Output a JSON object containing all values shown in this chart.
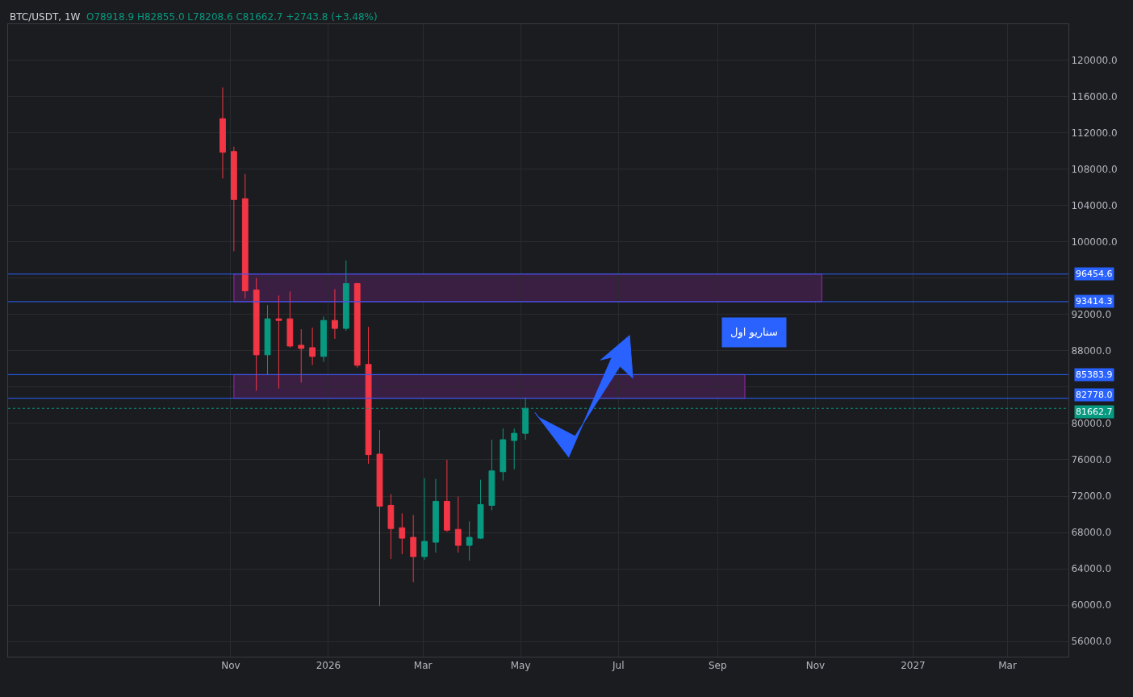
{
  "chart_data": {
    "type": "candlestick",
    "title": "BTC/USDT, 1W",
    "subtitle": "O78918.9 H82855.0 L78208.6 C81662.7 +2743.8 (+3.48%)",
    "x": [
      "2025-10-27",
      "2025-11-03",
      "2025-11-10",
      "2025-11-17",
      "2025-11-24",
      "2025-12-01",
      "2025-12-08",
      "2025-12-15",
      "2025-12-22",
      "2025-12-29",
      "2026-01-05",
      "2026-01-12",
      "2026-01-19",
      "2026-01-26",
      "2026-02-02",
      "2026-02-09",
      "2026-02-16",
      "2026-02-23",
      "2026-03-02",
      "2026-03-09",
      "2026-03-16",
      "2026-03-23",
      "2026-03-30",
      "2026-04-06",
      "2026-04-13",
      "2026-04-20",
      "2026-04-27",
      "2026-05-04"
    ],
    "ohlc": [
      [
        113565,
        117003,
        106979,
        109862
      ],
      [
        109950,
        110479,
        98958,
        104661
      ],
      [
        104749,
        107482,
        93757,
        94612
      ],
      [
        94700,
        96022,
        83621,
        87559
      ],
      [
        87559,
        93024,
        85328,
        91526
      ],
      [
        91526,
        94083,
        83857,
        91350
      ],
      [
        91526,
        94524,
        88353,
        88529
      ],
      [
        88617,
        90380,
        84502,
        88265
      ],
      [
        88353,
        90556,
        86440,
        87383
      ],
      [
        87383,
        91791,
        86793,
        91350
      ],
      [
        91350,
        94788,
        89322,
        90468
      ],
      [
        90468,
        97961,
        90204,
        95405
      ],
      [
        95405,
        95493,
        86149,
        86413
      ],
      [
        86501,
        90644,
        75570,
        76567
      ],
      [
        76629,
        79273,
        59906,
        70899
      ],
      [
        70987,
        72221,
        65081,
        68431
      ],
      [
        68519,
        70105,
        65610,
        67373
      ],
      [
        67461,
        69929,
        62524,
        65345
      ],
      [
        65345,
        73983,
        64992,
        67020
      ],
      [
        66932,
        73895,
        65786,
        71428
      ],
      [
        71428,
        76011,
        68079,
        68255
      ],
      [
        68343,
        71956,
        65786,
        66580
      ],
      [
        66580,
        69224,
        64904,
        67461
      ],
      [
        67373,
        73807,
        67285,
        71075
      ],
      [
        70987,
        78215,
        70458,
        74778
      ],
      [
        74690,
        79449,
        73719,
        78215
      ],
      [
        78127,
        79449,
        74954,
        78920
      ],
      [
        78918.9,
        82855.0,
        78208.6,
        81662.7
      ]
    ],
    "colors": [
      "#f23645",
      "#f23645",
      "#f23645",
      "#f23645",
      "#089981",
      "#f23645",
      "#f23645",
      "#f23645",
      "#f23645",
      "#089981",
      "#f23645",
      "#089981",
      "#f23645",
      "#f23645",
      "#f23645",
      "#f23645",
      "#f23645",
      "#f23645",
      "#089981",
      "#089981",
      "#f23645",
      "#f23645",
      "#089981",
      "#089981",
      "#089981",
      "#089981",
      "#089981",
      "#089981"
    ],
    "xlim": [
      "2025-06-15",
      "2027-04-08"
    ],
    "xticks": [
      {
        "value": "2025-11-01",
        "label": "Nov"
      },
      {
        "value": "2026-01-01",
        "label": "2026"
      },
      {
        "value": "2026-03-01",
        "label": "Mar"
      },
      {
        "value": "2026-05-01",
        "label": "May"
      },
      {
        "value": "2026-07-01",
        "label": "Jul"
      },
      {
        "value": "2026-09-01",
        "label": "Sep"
      },
      {
        "value": "2026-11-01",
        "label": "Nov"
      },
      {
        "value": "2027-01-01",
        "label": "2027"
      },
      {
        "value": "2027-03-01",
        "label": "Mar"
      }
    ],
    "ylim": [
      54325,
      123967
    ],
    "yticks": [
      {
        "value": 56000,
        "label": "56000.0"
      },
      {
        "value": 60000,
        "label": "60000.0"
      },
      {
        "value": 64000,
        "label": "64000.0"
      },
      {
        "value": 68000,
        "label": "68000.0"
      },
      {
        "value": 72000,
        "label": "72000.0"
      },
      {
        "value": 76000,
        "label": "76000.0"
      },
      {
        "value": 80000,
        "label": "80000.0"
      },
      {
        "value": 84000,
        "label": null
      },
      {
        "value": 88000,
        "label": "88000.0"
      },
      {
        "value": 92000,
        "label": "92000.0"
      },
      {
        "value": 96000,
        "label": null
      },
      {
        "value": 100000,
        "label": "100000.0"
      },
      {
        "value": 104000,
        "label": "104000.0"
      },
      {
        "value": 108000,
        "label": "108000.0"
      },
      {
        "value": 112000,
        "label": "112000.0"
      },
      {
        "value": 116000,
        "label": "116000.0"
      },
      {
        "value": 120000,
        "label": "120000.0"
      }
    ],
    "grid": true,
    "ref_lines": [
      {
        "axis": "y",
        "value": 96454.6,
        "label": "96454.6",
        "color": "#2962ff",
        "line_style": "solid"
      },
      {
        "axis": "y",
        "value": 93414.3,
        "label": "93414.3",
        "color": "#2962ff",
        "line_style": "solid"
      },
      {
        "axis": "y",
        "value": 85383.9,
        "label": "85383.9",
        "color": "#2962ff",
        "line_style": "solid"
      },
      {
        "axis": "y",
        "value": 82778.0,
        "label": "82778.0",
        "color": "#2962ff",
        "line_style": "solid"
      },
      {
        "axis": "y",
        "value": 81662.7,
        "label": "81662.7",
        "color": "#089981",
        "line_style": "dotted"
      }
    ],
    "bands": [
      {
        "axis": "y",
        "from": 93414.3,
        "to": 96454.6,
        "color": "#9c27b0"
      },
      {
        "axis": "y",
        "from": 82778.0,
        "to": 85383.9,
        "color": "#9c27b0"
      }
    ],
    "annotations": [
      "سناریو اول"
    ]
  }
}
